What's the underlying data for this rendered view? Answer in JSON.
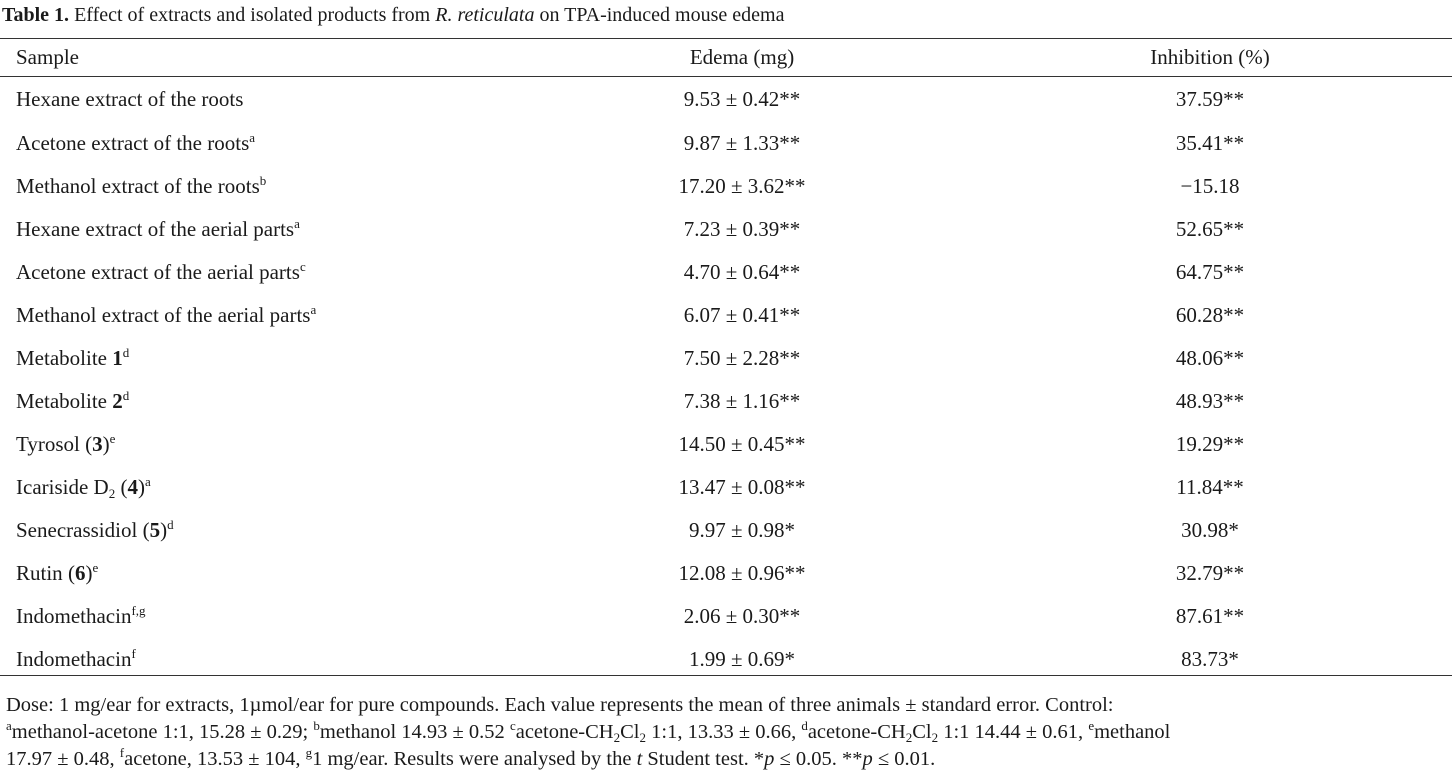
{
  "caption": {
    "label": "Table 1.",
    "text_before": " Effect of extracts and isolated products from ",
    "species": "R. reticulata",
    "text_after": " on TPA-induced mouse edema"
  },
  "columns": [
    "Sample",
    "Edema (mg)",
    "Inhibition (%)"
  ],
  "rows": [
    {
      "name": "Hexane extract of the roots",
      "bold": "",
      "paren": false,
      "sub": "",
      "after": "",
      "sup": "",
      "edema": "9.53 ± 0.42**",
      "inhibition": "37.59**"
    },
    {
      "name": "Acetone extract of the roots",
      "bold": "",
      "paren": false,
      "sub": "",
      "after": "",
      "sup": "a",
      "edema": "9.87 ± 1.33**",
      "inhibition": "35.41**"
    },
    {
      "name": "Methanol extract of the roots",
      "bold": "",
      "paren": false,
      "sub": "",
      "after": "",
      "sup": "b",
      "edema": "17.20 ± 3.62**",
      "inhibition": "−15.18"
    },
    {
      "name": "Hexane extract of the aerial parts",
      "bold": "",
      "paren": false,
      "sub": "",
      "after": "",
      "sup": "a",
      "edema": "7.23 ± 0.39**",
      "inhibition": "52.65**"
    },
    {
      "name": "Acetone extract of the aerial parts",
      "bold": "",
      "paren": false,
      "sub": "",
      "after": "",
      "sup": "c",
      "edema": "4.70 ± 0.64**",
      "inhibition": "64.75**"
    },
    {
      "name": "Methanol extract of the aerial parts",
      "bold": "",
      "paren": false,
      "sub": "",
      "after": "",
      "sup": "a",
      "edema": "6.07 ± 0.41**",
      "inhibition": "60.28**"
    },
    {
      "name": "Metabolite ",
      "bold": "1",
      "paren": false,
      "sub": "",
      "after": "",
      "sup": "d",
      "edema": "7.50 ± 2.28**",
      "inhibition": "48.06**"
    },
    {
      "name": "Metabolite ",
      "bold": "2",
      "paren": false,
      "sub": "",
      "after": "",
      "sup": "d",
      "edema": "7.38 ± 1.16**",
      "inhibition": "48.93**"
    },
    {
      "name": "Tyrosol ",
      "bold": "3",
      "paren": true,
      "sub": "",
      "after": "",
      "sup": "e",
      "edema": "14.50 ± 0.45**",
      "inhibition": "19.29**"
    },
    {
      "name": "Icariside D",
      "bold": "4",
      "paren": true,
      "sub": "2",
      "after": " ",
      "sup": "a",
      "edema": "13.47 ± 0.08**",
      "inhibition": "11.84**"
    },
    {
      "name": "Senecrassidiol ",
      "bold": "5",
      "paren": true,
      "sub": "",
      "after": "",
      "sup": "d",
      "edema": "9.97 ± 0.98*",
      "inhibition": "30.98*"
    },
    {
      "name": "Rutin ",
      "bold": "6",
      "paren": true,
      "sub": "",
      "after": "",
      "sup": "e",
      "edema": "12.08 ± 0.96**",
      "inhibition": "32.79**"
    },
    {
      "name": "Indomethacin",
      "bold": "",
      "paren": false,
      "sub": "",
      "after": "",
      "sup": "f,g",
      "edema": "2.06 ± 0.30**",
      "inhibition": "87.61**"
    },
    {
      "name": "Indomethacin",
      "bold": "",
      "paren": false,
      "sub": "",
      "after": "",
      "sup": "f",
      "edema": "1.99 ± 0.69*",
      "inhibition": "83.73*"
    }
  ],
  "footnote": {
    "line1": "Dose: 1 mg/ear for extracts, 1µmol/ear for pure compounds. Each value represents the mean of three animals ± standard error. Control:",
    "line2": [
      {
        "t": "a",
        "s": "sup"
      },
      {
        "t": "methanol-acetone 1:1, 15.28 ± 0.29; "
      },
      {
        "t": "b",
        "s": "sup"
      },
      {
        "t": "methanol 14.93 ± 0.52 "
      },
      {
        "t": "c",
        "s": "sup"
      },
      {
        "t": "acetone-CH"
      },
      {
        "t": "2",
        "s": "sub"
      },
      {
        "t": "Cl"
      },
      {
        "t": "2",
        "s": "sub"
      },
      {
        "t": " 1:1, 13.33 ± 0.66, "
      },
      {
        "t": "d",
        "s": "sup"
      },
      {
        "t": "acetone-CH"
      },
      {
        "t": "2",
        "s": "sub"
      },
      {
        "t": "Cl"
      },
      {
        "t": "2",
        "s": "sub"
      },
      {
        "t": " 1:1 14.44 ± 0.61, "
      },
      {
        "t": "e",
        "s": "sup"
      },
      {
        "t": "methanol"
      }
    ],
    "line3": [
      {
        "t": "17.97 ± 0.48, "
      },
      {
        "t": "f",
        "s": "sup"
      },
      {
        "t": "acetone, 13.53 ± 104, "
      },
      {
        "t": "g",
        "s": "sup"
      },
      {
        "t": "1 mg/ear. Results were analysed by the "
      },
      {
        "t": "t",
        "s": "i"
      },
      {
        "t": " Student test. *"
      },
      {
        "t": "p",
        "s": "i"
      },
      {
        "t": " ≤ 0.05. **"
      },
      {
        "t": "p",
        "s": "i"
      },
      {
        "t": " ≤ 0.01."
      }
    ]
  }
}
